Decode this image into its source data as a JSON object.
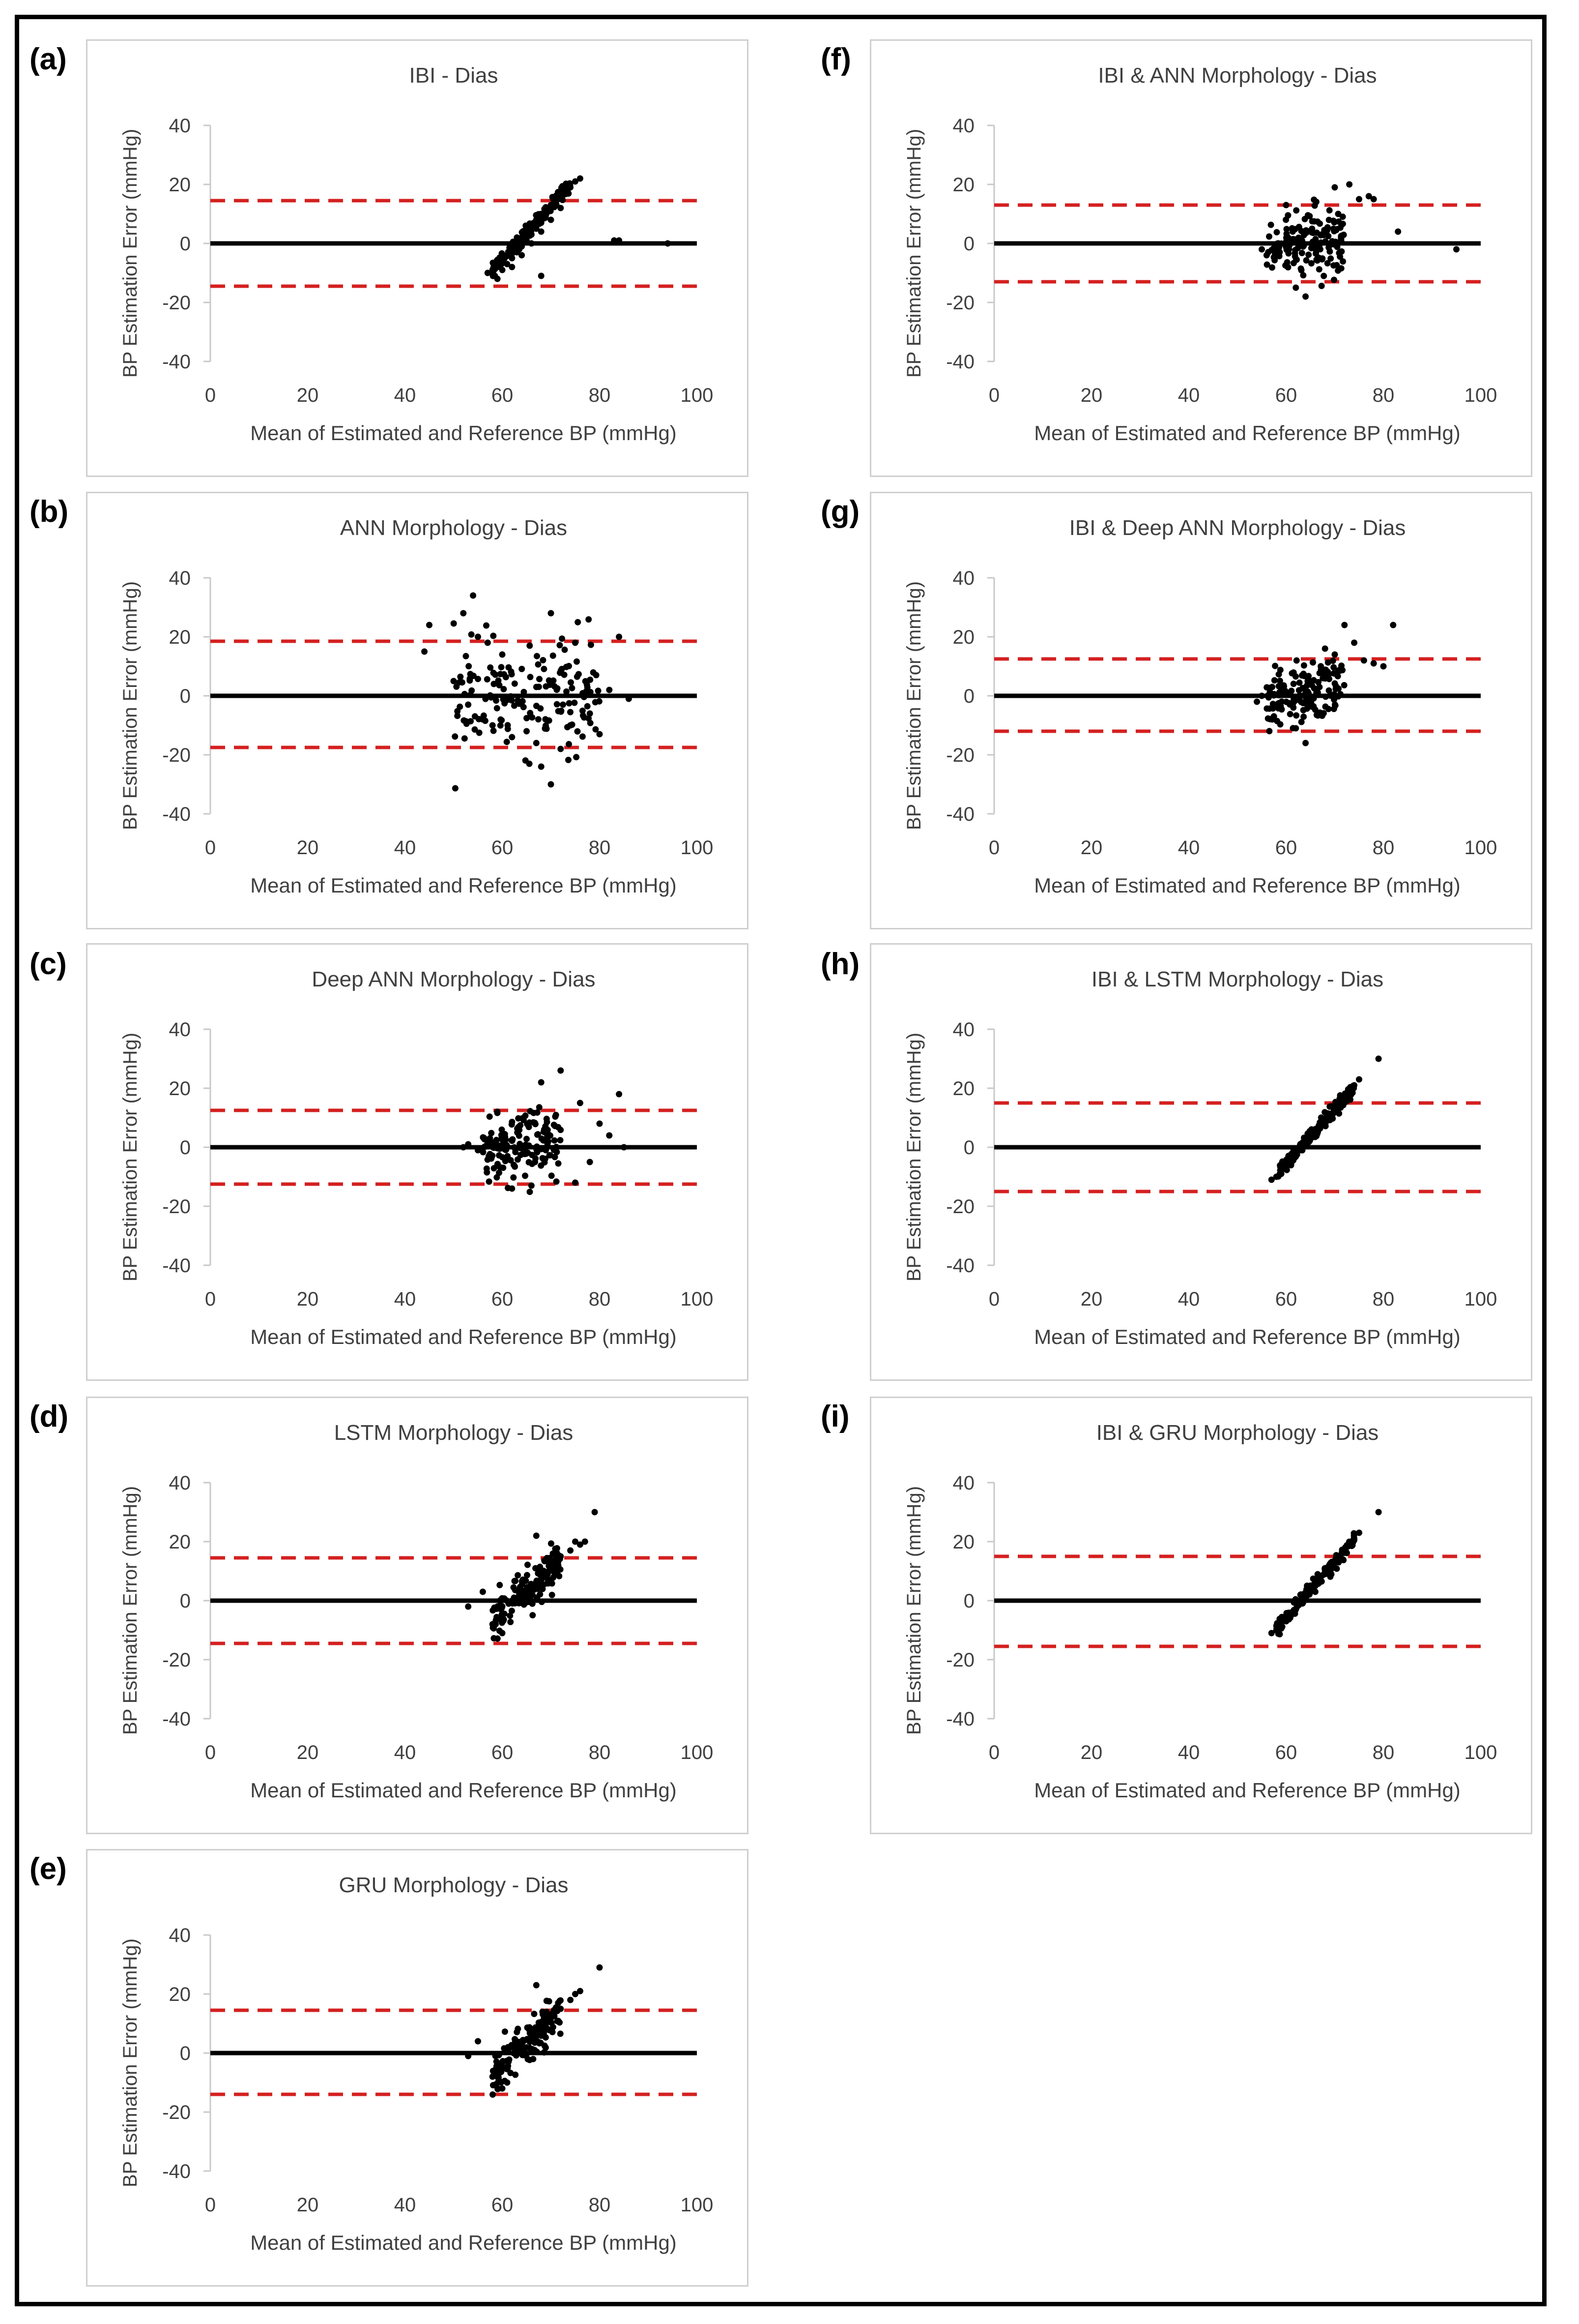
{
  "figure": {
    "colors": {
      "zero_line": "#000000",
      "limit_line": "#d42020",
      "point": "#000000",
      "axis": "#c8c8c8",
      "frame": "#000000"
    }
  },
  "chart_data": [
    {
      "id": "a",
      "letter": "(a)",
      "type": "scatter",
      "title": "IBI - Dias",
      "xlabel": "Mean of Estimated and Reference BP (mmHg)",
      "ylabel": "BP Estimation Error (mmHg)",
      "xlim": [
        0,
        100
      ],
      "ylim": [
        -40,
        40
      ],
      "xticks": [
        "0",
        "20",
        "40",
        "60",
        "80",
        "100"
      ],
      "yticks": [
        "40",
        "20",
        "0",
        "-20",
        "-40"
      ],
      "xtick_values": [
        0,
        20,
        40,
        60,
        80,
        100
      ],
      "ytick_values": [
        40,
        20,
        0,
        -20,
        -40
      ],
      "mean_line": 0,
      "upper_limit": 14.5,
      "lower_limit": -14.5,
      "pattern": "diagonal",
      "points": [
        [
          57,
          -10
        ],
        [
          58,
          -9
        ],
        [
          59,
          -8
        ],
        [
          59.5,
          -7
        ],
        [
          60,
          -6
        ],
        [
          60.5,
          -5
        ],
        [
          61,
          -4
        ],
        [
          61.5,
          -3
        ],
        [
          62,
          -2
        ],
        [
          62.5,
          -1
        ],
        [
          63,
          0
        ],
        [
          63.5,
          1
        ],
        [
          64,
          2
        ],
        [
          64.5,
          3
        ],
        [
          65,
          4
        ],
        [
          65.5,
          5
        ],
        [
          66,
          6
        ],
        [
          66.5,
          7
        ],
        [
          67,
          8
        ],
        [
          67.5,
          9
        ],
        [
          68,
          10
        ],
        [
          69,
          11
        ],
        [
          70,
          13
        ],
        [
          71,
          14
        ],
        [
          72,
          16
        ],
        [
          73,
          17
        ],
        [
          74,
          19
        ],
        [
          75,
          21
        ],
        [
          76,
          22
        ],
        [
          58.5,
          -11
        ],
        [
          60,
          -9
        ],
        [
          61,
          -7
        ],
        [
          62,
          -5
        ],
        [
          63,
          -3
        ],
        [
          64,
          -1
        ],
        [
          65,
          1
        ],
        [
          66,
          3
        ],
        [
          67,
          5
        ],
        [
          68,
          7
        ],
        [
          59,
          -12
        ],
        [
          62,
          -8
        ],
        [
          64,
          -4
        ],
        [
          66,
          0
        ],
        [
          68,
          4
        ],
        [
          70,
          8
        ],
        [
          72,
          12
        ],
        [
          68,
          -11
        ],
        [
          83,
          1
        ],
        [
          84,
          1
        ],
        [
          94,
          0
        ]
      ]
    },
    {
      "id": "b",
      "letter": "(b)",
      "type": "scatter",
      "title": "ANN Morphology - Dias",
      "xlabel": "Mean of Estimated and Reference BP (mmHg)",
      "ylabel": "BP Estimation Error (mmHg)",
      "xlim": [
        0,
        100
      ],
      "ylim": [
        -40,
        40
      ],
      "xticks": [
        "0",
        "20",
        "40",
        "60",
        "80",
        "100"
      ],
      "yticks": [
        "40",
        "20",
        "0",
        "-20",
        "-40"
      ],
      "xtick_values": [
        0,
        20,
        40,
        60,
        80,
        100
      ],
      "ytick_values": [
        40,
        20,
        0,
        -20,
        -40
      ],
      "mean_line": 0,
      "upper_limit": 18.5,
      "lower_limit": -17.5,
      "pattern": "wide",
      "points": [
        [
          44,
          15
        ],
        [
          45,
          24
        ],
        [
          52,
          28
        ],
        [
          54,
          34
        ],
        [
          55,
          20
        ],
        [
          57,
          18
        ],
        [
          60,
          14
        ],
        [
          70,
          28
        ],
        [
          75,
          18
        ],
        [
          84,
          20
        ],
        [
          68,
          -24
        ],
        [
          70,
          -30
        ],
        [
          72,
          -18
        ],
        [
          80,
          -13
        ],
        [
          86,
          -1
        ],
        [
          50,
          5
        ],
        [
          53,
          -3
        ],
        [
          56,
          -8
        ],
        [
          58,
          -10
        ],
        [
          62,
          -14
        ],
        [
          65,
          -12
        ],
        [
          67,
          -16
        ],
        [
          74,
          -10
        ],
        [
          78,
          -6
        ],
        [
          82,
          2
        ]
      ]
    },
    {
      "id": "c",
      "letter": "(c)",
      "type": "scatter",
      "title": "Deep ANN Morphology - Dias",
      "xlabel": "Mean of Estimated and Reference BP (mmHg)",
      "ylabel": "BP Estimation Error (mmHg)",
      "xlim": [
        0,
        100
      ],
      "ylim": [
        -40,
        40
      ],
      "xticks": [
        "0",
        "20",
        "40",
        "60",
        "80",
        "100"
      ],
      "yticks": [
        "40",
        "20",
        "0",
        "-20",
        "-40"
      ],
      "xtick_values": [
        0,
        20,
        40,
        60,
        80,
        100
      ],
      "ytick_values": [
        40,
        20,
        0,
        -20,
        -40
      ],
      "mean_line": 0,
      "upper_limit": 12.5,
      "lower_limit": -12.5,
      "pattern": "cluster",
      "points": [
        [
          52,
          0
        ],
        [
          53,
          1
        ],
        [
          55,
          -1
        ],
        [
          68,
          22
        ],
        [
          72,
          26
        ],
        [
          76,
          15
        ],
        [
          80,
          8
        ],
        [
          84,
          18
        ],
        [
          85,
          0
        ],
        [
          62,
          -14
        ],
        [
          66,
          -13
        ],
        [
          75,
          -12
        ],
        [
          78,
          -5
        ],
        [
          82,
          4
        ]
      ]
    },
    {
      "id": "d",
      "letter": "(d)",
      "type": "scatter",
      "title": "LSTM Morphology - Dias",
      "xlabel": "Mean of Estimated and Reference BP (mmHg)",
      "ylabel": "BP Estimation Error (mmHg)",
      "xlim": [
        0,
        100
      ],
      "ylim": [
        -40,
        40
      ],
      "xticks": [
        "0",
        "20",
        "40",
        "60",
        "80",
        "100"
      ],
      "yticks": [
        "40",
        "20",
        "0",
        "-20",
        "-40"
      ],
      "xtick_values": [
        0,
        20,
        40,
        60,
        80,
        100
      ],
      "ytick_values": [
        40,
        20,
        0,
        -20,
        -40
      ],
      "mean_line": 0,
      "upper_limit": 14.5,
      "lower_limit": -14.5,
      "pattern": "scatter-diagonal",
      "points": [
        [
          53,
          -2
        ],
        [
          56,
          3
        ],
        [
          58,
          -8
        ],
        [
          60,
          -11
        ],
        [
          67,
          22
        ],
        [
          74,
          17
        ],
        [
          75,
          20
        ],
        [
          76,
          19
        ],
        [
          77,
          20
        ],
        [
          79,
          30
        ],
        [
          72,
          15
        ],
        [
          70,
          12
        ]
      ]
    },
    {
      "id": "e",
      "letter": "(e)",
      "type": "scatter",
      "title": "GRU Morphology - Dias",
      "xlabel": "Mean of Estimated and Reference BP (mmHg)",
      "ylabel": "BP Estimation Error (mmHg)",
      "xlim": [
        0,
        100
      ],
      "ylim": [
        -40,
        40
      ],
      "xticks": [
        "0",
        "20",
        "40",
        "60",
        "80",
        "100"
      ],
      "yticks": [
        "40",
        "20",
        "0",
        "-20",
        "-40"
      ],
      "xtick_values": [
        0,
        20,
        40,
        60,
        80,
        100
      ],
      "ytick_values": [
        40,
        20,
        0,
        -20,
        -40
      ],
      "mean_line": 0,
      "upper_limit": 14.5,
      "lower_limit": -14,
      "pattern": "scatter-diagonal",
      "points": [
        [
          53,
          -1
        ],
        [
          55,
          4
        ],
        [
          58,
          -8
        ],
        [
          60,
          -12
        ],
        [
          61,
          -10
        ],
        [
          67,
          23
        ],
        [
          74,
          18
        ],
        [
          75,
          20
        ],
        [
          76,
          21
        ],
        [
          80,
          29
        ],
        [
          72,
          15
        ],
        [
          70,
          12
        ]
      ]
    },
    {
      "id": "f",
      "letter": "(f)",
      "type": "scatter",
      "title": "IBI & ANN Morphology - Dias",
      "xlabel": "Mean of Estimated and Reference BP (mmHg)",
      "ylabel": "BP Estimation Error (mmHg)",
      "xlim": [
        0,
        100
      ],
      "ylim": [
        -40,
        40
      ],
      "xticks": [
        "0",
        "20",
        "40",
        "60",
        "80",
        "100"
      ],
      "yticks": [
        "40",
        "20",
        "0",
        "-20",
        "-40"
      ],
      "xtick_values": [
        0,
        20,
        40,
        60,
        80,
        100
      ],
      "ytick_values": [
        40,
        20,
        0,
        -20,
        -40
      ],
      "mean_line": 0,
      "upper_limit": 13,
      "lower_limit": -13,
      "pattern": "cluster",
      "points": [
        [
          55,
          -2
        ],
        [
          56,
          -4
        ],
        [
          62,
          -15
        ],
        [
          64,
          -18
        ],
        [
          70,
          19
        ],
        [
          73,
          20
        ],
        [
          75,
          15
        ],
        [
          77,
          16
        ],
        [
          78,
          15
        ],
        [
          83,
          4
        ],
        [
          95,
          -2
        ],
        [
          60,
          13
        ]
      ]
    },
    {
      "id": "g",
      "letter": "(g)",
      "type": "scatter",
      "title": "IBI & Deep ANN  Morphology - Dias",
      "xlabel": "Mean of Estimated and Reference BP (mmHg)",
      "ylabel": "BP Estimation Error (mmHg)",
      "xlim": [
        0,
        100
      ],
      "ylim": [
        -40,
        40
      ],
      "xticks": [
        "0",
        "20",
        "40",
        "60",
        "80",
        "100"
      ],
      "yticks": [
        "40",
        "20",
        "0",
        "-20",
        "-40"
      ],
      "xtick_values": [
        0,
        20,
        40,
        60,
        80,
        100
      ],
      "ytick_values": [
        40,
        20,
        0,
        -20,
        -40
      ],
      "mean_line": 0,
      "upper_limit": 12.5,
      "lower_limit": -12,
      "pattern": "cluster",
      "points": [
        [
          54,
          -2
        ],
        [
          55,
          0
        ],
        [
          62,
          -11
        ],
        [
          64,
          -16
        ],
        [
          72,
          24
        ],
        [
          74,
          18
        ],
        [
          76,
          12
        ],
        [
          78,
          11
        ],
        [
          80,
          10
        ],
        [
          82,
          24
        ],
        [
          68,
          16
        ],
        [
          70,
          14
        ]
      ]
    },
    {
      "id": "h",
      "letter": "(h)",
      "type": "scatter",
      "title": "IBI & LSTM Morphology - Dias",
      "xlabel": "Mean of Estimated and Reference BP (mmHg)",
      "ylabel": "BP Estimation Error (mmHg)",
      "xlim": [
        0,
        100
      ],
      "ylim": [
        -40,
        40
      ],
      "xticks": [
        "0",
        "20",
        "40",
        "60",
        "80",
        "100"
      ],
      "yticks": [
        "40",
        "20",
        "0",
        "-20",
        "-40"
      ],
      "xtick_values": [
        0,
        20,
        40,
        60,
        80,
        100
      ],
      "ytick_values": [
        40,
        20,
        0,
        -20,
        -40
      ],
      "mean_line": 0,
      "upper_limit": 15,
      "lower_limit": -15,
      "pattern": "diagonal",
      "points": [
        [
          57,
          -11
        ],
        [
          58,
          -10
        ],
        [
          59,
          -9
        ],
        [
          60,
          -7
        ],
        [
          61,
          -5
        ],
        [
          62,
          -3
        ],
        [
          63,
          -1
        ],
        [
          64,
          1
        ],
        [
          65,
          3
        ],
        [
          66,
          5
        ],
        [
          67,
          7
        ],
        [
          68,
          9
        ],
        [
          69,
          11
        ],
        [
          70,
          13
        ],
        [
          71,
          15
        ],
        [
          72,
          17
        ],
        [
          73,
          19
        ],
        [
          74,
          21
        ],
        [
          75,
          23
        ],
        [
          79,
          30
        ]
      ]
    },
    {
      "id": "i",
      "letter": "(i)",
      "type": "scatter",
      "title": "IBI & GRU Morphology - Dias",
      "xlabel": "Mean of Estimated and Reference BP (mmHg)",
      "ylabel": "BP Estimation Error (mmHg)",
      "xlim": [
        0,
        100
      ],
      "ylim": [
        -40,
        40
      ],
      "xticks": [
        "0",
        "20",
        "40",
        "60",
        "80",
        "100"
      ],
      "yticks": [
        "40",
        "20",
        "0",
        "-20",
        "-40"
      ],
      "xtick_values": [
        0,
        20,
        40,
        60,
        80,
        100
      ],
      "ytick_values": [
        40,
        20,
        0,
        -20,
        -40
      ],
      "mean_line": 0,
      "upper_limit": 15,
      "lower_limit": -15.5,
      "pattern": "diagonal",
      "points": [
        [
          57,
          -11
        ],
        [
          58,
          -10
        ],
        [
          59,
          -9
        ],
        [
          60,
          -7
        ],
        [
          61,
          -5
        ],
        [
          62,
          -3
        ],
        [
          63,
          -1
        ],
        [
          64,
          1
        ],
        [
          65,
          3
        ],
        [
          66,
          5
        ],
        [
          67,
          7
        ],
        [
          68,
          9
        ],
        [
          69,
          11
        ],
        [
          70,
          13
        ],
        [
          71,
          15
        ],
        [
          72,
          17
        ],
        [
          73,
          19
        ],
        [
          74,
          21
        ],
        [
          75,
          23
        ],
        [
          79,
          30
        ]
      ]
    }
  ]
}
